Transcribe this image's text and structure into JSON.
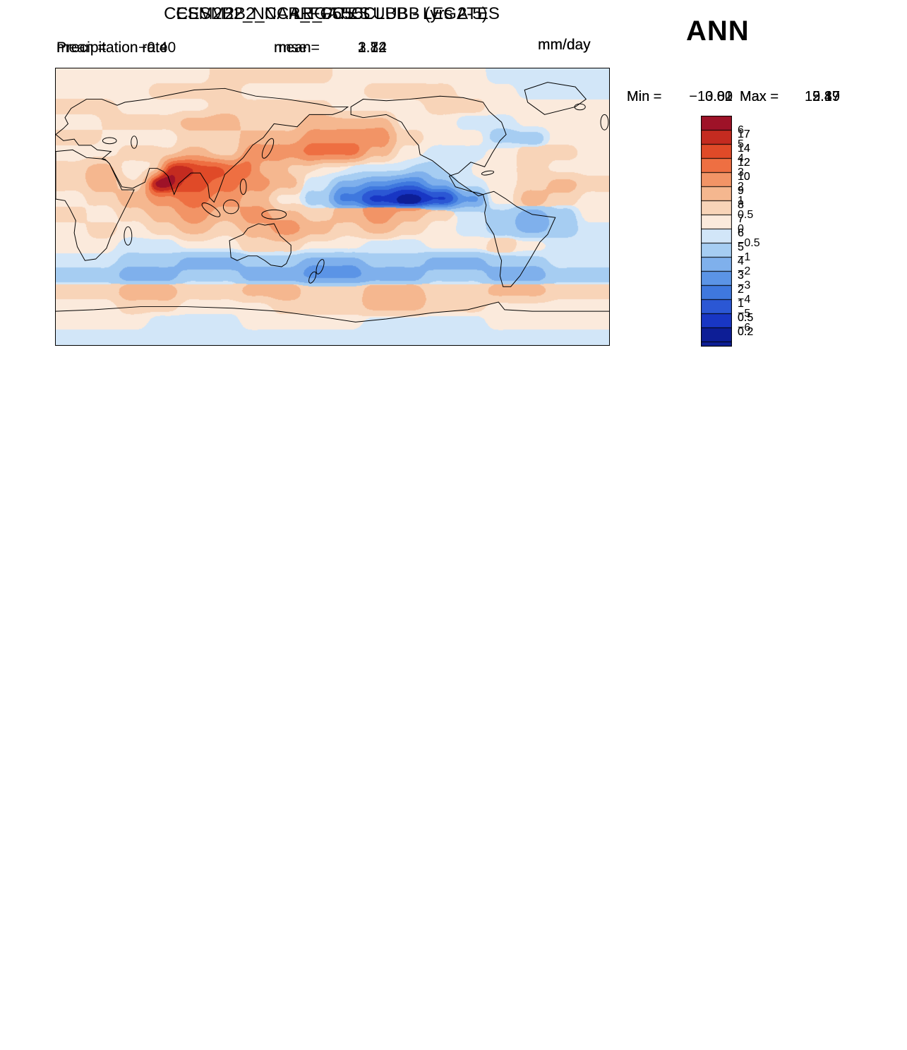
{
  "season": "ANN",
  "palette": [
    "#0d1e96",
    "#1836c4",
    "#2b57d4",
    "#3f78de",
    "#5b94e6",
    "#7fb0ec",
    "#a6cdf2",
    "#d2e6f8",
    "#fbeadc",
    "#f8d4b8",
    "#f5b78f",
    "#f29466",
    "#ee6f42",
    "#e04a28",
    "#c42b20",
    "#9e1228"
  ],
  "chart_data": [
    {
      "type": "filled-contour-map",
      "projection": "equirectangular 0-360E, 90S-90N",
      "title": "CESM2B2_NCAR_FC55CLUBB (yrs 2-5)",
      "slot1_label": "Precipitation rate",
      "slot1_value": "",
      "slot2_label": "mean=",
      "slot2_value": "2.72",
      "units": "mm/day",
      "min_label": "Min =",
      "min_value": "0.01",
      "max_label": "Max =",
      "max_value": "12.49",
      "colorbar_ticks": [
        "17",
        "14",
        "12",
        "10",
        "9",
        "8",
        "7",
        "6",
        "5",
        "4",
        "3",
        "2",
        "1",
        "0.5",
        "0.2"
      ],
      "contour_levels": [
        0.2,
        0.5,
        1,
        2,
        3,
        4,
        5,
        6,
        7,
        8,
        9,
        10,
        12,
        14,
        17
      ],
      "grid_cols": 36,
      "grid_rows": 18,
      "grid_levels_rle": [
        "3*36",
        "3*7 2*15 3*14",
        "4*3 3*3 2*12 3*14 4*4",
        "4*3 3*2 2*13 5*6 3*8 5*4",
        "3*3 2*9 3*3 4*2 6*7 4*3 3*4 5*5",
        "2*2 1*5 2*3 3*3 5*2 4*9 3*2 2*2 4*6 2*2",
        "1*1 0*6 4*1 9*1 a*1 7*2 5*2 4*3 3*3 2*3 1*5 2*1 3*1 2*1 1*3 0*2",
        "5*2 4*3 6*2 d*2 b*1 9*1 8*6 7*6 8*2 9*2 8*1 6*1 7*1 8*2 6*2 5*2",
        "7*3 5*2 8*2 9*3 a*4 9*2 8*8 9*3 a*1 8*1 9*2 8*3 7*2",
        "6*3 5*1 7*5 a*5 8*2 6*4 5*4 4*3 3*1 6*1 8*2 6*1 5*2 6*2",
        "4*3 5*5 6*5 5*5 4*3 3*3 1*2 0*2 1*1 5*1 6*2 4*1 2*2 3*1",
        "3*3 4*2 3*5 2*5 4*5 3*3 2*3 0*3 2*1 4*1 3*1 2*4",
        "3*5 4*5 3*5 4*2 5*3 4*4 3*3 2*1 3*1 4*5 3*2",
        "4*4 5*4 4*4 5*4 4*4 5*4 4*4 5*4 4*4",
        "3*36",
        "2*36",
        "1*8 2*4 1*12 2*4 1*8",
        "2*3 1*4 0*22 1*4 2*3"
      ]
    },
    {
      "type": "filled-contour-map",
      "projection": "equirectangular 0-360E, 90S-90N",
      "title": "LEGATES",
      "slot1_label": "Precipitation rate",
      "slot1_value": "",
      "slot2_label": "mean=",
      "slot2_value": "3.12",
      "units": "mm/day",
      "min_label": "Min =",
      "min_value": "0.00",
      "max_label": "Max =",
      "max_value": "15.89",
      "colorbar_ticks": [
        "17",
        "14",
        "12",
        "10",
        "9",
        "8",
        "7",
        "6",
        "5",
        "4",
        "3",
        "2",
        "1",
        "0.5",
        "0.2"
      ],
      "contour_levels": [
        0.2,
        0.5,
        1,
        2,
        3,
        4,
        5,
        6,
        7,
        8,
        9,
        10,
        12,
        14,
        17
      ],
      "grid_cols": 36,
      "grid_rows": 18,
      "grid_levels_rle": [
        "2*36",
        "2*7 1*8 2*21",
        "4*3 3*3 2*12 3*10 4*4 3*4",
        "5*2 4*3 2*10 3*3 5*6 3*8 6*4",
        "4*2 3*4 2*6 3*5 6*6 4*4 3*4 6*5",
        "3*2 1*5 2*3 3*3 6*2 5*7 4*2 3*2 2*2 4*6 3*2",
        "1*1 0*6 2*1 7*1 9*1 8*2 6*2 5*3 4*3 3*3 2*5 1*1 3*1 2*1 1*3 0*2",
        "4*5 6*2 9*1 b*2 a*2 9*4 a*2 b*4 a*2 b*2 c*2 9*2 7*2 8*2 5*2",
        "8*3 6*2 8*2 9*2 b*4 a*2 c*6 d*4 c*2 a*1 9*1 a*2 9*3 8*2",
        "7*3 5*2 7*4 a*4 b*2 9*2 8*3 7*3 5*3 4*2 3*1 8*2 7*1 6*2 5*2",
        "4*3 5*4 6*3 7*2 6*2 7*2 6*2 7*2 6*2 5*2 4*2 2*2 0*2 1*1 6*1 7*2 5*1 3*1",
        "3*3 4*2 3*4 2*5 4*4 5*2 4*3 3*2 2*2 1*2 0*3 2*1 4*1 2*2",
        "3*5 4*5 3*4 4*3 5*3 4*4 3*4 2*1 3*1 4*4 3*2",
        "4*4 5*4 4*4 5*4 4*4 5*4 4*4 5*4 4*4",
        "4*6 3*24 4*6",
        "2*36",
        "1*36",
        "1*3 0*30 1*3"
      ]
    },
    {
      "type": "filled-contour-map",
      "projection": "equirectangular 0-360E, 90S-90N",
      "title": "CESM2B2_NCAR_FC55CLUBB - LEGATES",
      "slot1_label": "mean =",
      "slot1_value": "−0.40",
      "slot2_label": "rmse =",
      "slot2_value": "1.84",
      "units": "mm/day",
      "min_label": "Min =",
      "min_value": "−13.82",
      "max_label": "Max =",
      "max_value": "9.17",
      "colorbar_ticks": [
        "6",
        "5",
        "4",
        "3",
        "2",
        "1",
        "0.5",
        "0",
        "−0.5",
        "−1",
        "−2",
        "−3",
        "−4",
        "−5",
        "−6"
      ],
      "contour_levels": [
        -6,
        -5,
        -4,
        -3,
        -2,
        -1,
        -0.5,
        0,
        0.5,
        1,
        2,
        3,
        4,
        5,
        6
      ],
      "grid_cols": 36,
      "grid_rows": 18,
      "grid_levels_rle": [
        "8*10 9*8 8*10 7*8",
        "8*6 9*6 8*8 9*6 8*4 7*6",
        "9*4 8*6 9*8 8*6 9*4 8*8",
        "8*3 9*5 a*4 9*4 a*6 8*4 7*4 8*6",
        "9*3 8*5 9*4 a*4 b*6 9*2 8*4 6*4 8*4",
        "8*4 9*4 a*2 9*2 b*4 c*4 a*2 8*2 7*4 8*2 9*4 8*2",
        "9*2 a*2 8*2 9*1 e*2 d*2 c*2 a*2 9*2 8*2 7*4 6*2 7*2 8*3 9*2 8*4",
        "9*2 a*2 9*2 f*2 d*2 c*2 b*2 a*2 7*2 5*2 4*2 3*2 5*2 7*2 8*2 9*2 a*2 9*2",
        "8*2 9*2 a*2 b*2 c*2 b*2 a*2 8*2 6*2 3*2 1*2 0*2 1*2 4*2 8*2 a*2 9*2 8*2",
        "9*2 8*2 9*2 a*2 b*2 a*2 b*2 a*2 9*2 a*2 b*2 a*2 9*2 7*2 6*2 5*2 6*2 8*2",
        "8*2 9*2 8*2 9*2 a*2 9*2 a*2 b*2 a*2 9*2 a*2 9*2 8*2 7*2 6*2 5*2 6*2 7*2",
        "8*4 7*4 8*4 9*4 8*4 7*4 8*4 9*2 8*2 7*4",
        "7*4 6*4 5*4 6*4 5*4 6*4 5*4 6*4 7*4",
        "6*4 5*4 6*4 5*4 4*4 5*4 6*4 5*4 6*4",
        "9*4 a*4 9*4 a*4 9*4 a*4 9*4 a*4 9*4",
        "8*4 9*4 8*6 9*6 a*4 9*4 8*8",
        "8*6 7*6 8*8 7*8 8*8",
        "7*36"
      ]
    }
  ]
}
